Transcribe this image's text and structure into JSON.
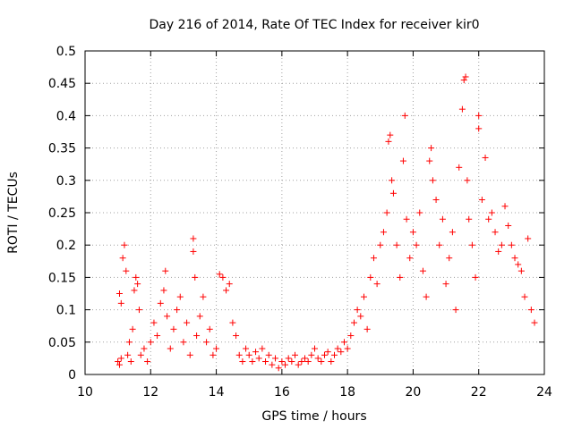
{
  "chart_data": {
    "type": "scatter",
    "title": "Day 216 of 2014, Rate Of TEC Index for receiver kir0",
    "xlabel": "GPS time / hours",
    "ylabel": "ROTI / TECUs",
    "xlim": [
      10,
      24
    ],
    "ylim": [
      0,
      0.5
    ],
    "x_ticks": [
      10,
      12,
      14,
      16,
      18,
      20,
      22,
      24
    ],
    "y_ticks": [
      0,
      0.05,
      0.1,
      0.15,
      0.2,
      0.25,
      0.3,
      0.35,
      0.4,
      0.45,
      0.5
    ],
    "x_tick_labels": [
      "10",
      "12",
      "14",
      "16",
      "18",
      "20",
      "22",
      "24"
    ],
    "y_tick_labels": [
      "0",
      "0.05",
      "0.1",
      "0.15",
      "0.2",
      "0.25",
      "0.3",
      "0.35",
      "0.4",
      "0.45",
      "0.5"
    ],
    "grid": true,
    "marker": "+",
    "marker_color": "#ff0000",
    "series": [
      {
        "name": "kir0 ROTI",
        "points": [
          [
            11.0,
            0.02
          ],
          [
            11.05,
            0.015
          ],
          [
            11.1,
            0.025
          ],
          [
            11.15,
            0.18
          ],
          [
            11.2,
            0.2
          ],
          [
            11.25,
            0.16
          ],
          [
            11.05,
            0.125
          ],
          [
            11.1,
            0.11
          ],
          [
            11.3,
            0.03
          ],
          [
            11.35,
            0.05
          ],
          [
            11.4,
            0.02
          ],
          [
            11.45,
            0.07
          ],
          [
            11.5,
            0.13
          ],
          [
            11.55,
            0.15
          ],
          [
            11.6,
            0.14
          ],
          [
            11.65,
            0.1
          ],
          [
            11.7,
            0.03
          ],
          [
            11.8,
            0.04
          ],
          [
            11.9,
            0.02
          ],
          [
            12.0,
            0.05
          ],
          [
            12.1,
            0.08
          ],
          [
            12.2,
            0.06
          ],
          [
            12.3,
            0.11
          ],
          [
            12.4,
            0.13
          ],
          [
            12.45,
            0.16
          ],
          [
            12.5,
            0.09
          ],
          [
            12.6,
            0.04
          ],
          [
            12.7,
            0.07
          ],
          [
            12.8,
            0.1
          ],
          [
            12.9,
            0.12
          ],
          [
            13.0,
            0.05
          ],
          [
            13.1,
            0.08
          ],
          [
            13.2,
            0.03
          ],
          [
            13.3,
            0.21
          ],
          [
            13.3,
            0.19
          ],
          [
            13.35,
            0.15
          ],
          [
            13.4,
            0.06
          ],
          [
            13.5,
            0.09
          ],
          [
            13.6,
            0.12
          ],
          [
            13.7,
            0.05
          ],
          [
            13.8,
            0.07
          ],
          [
            13.9,
            0.03
          ],
          [
            14.0,
            0.04
          ],
          [
            14.1,
            0.155
          ],
          [
            14.2,
            0.15
          ],
          [
            14.3,
            0.13
          ],
          [
            14.4,
            0.14
          ],
          [
            14.5,
            0.08
          ],
          [
            14.6,
            0.06
          ],
          [
            14.7,
            0.03
          ],
          [
            14.8,
            0.02
          ],
          [
            14.9,
            0.04
          ],
          [
            15.0,
            0.03
          ],
          [
            15.1,
            0.02
          ],
          [
            15.2,
            0.035
          ],
          [
            15.3,
            0.025
          ],
          [
            15.4,
            0.04
          ],
          [
            15.5,
            0.02
          ],
          [
            15.6,
            0.03
          ],
          [
            15.7,
            0.015
          ],
          [
            15.8,
            0.025
          ],
          [
            15.9,
            0.01
          ],
          [
            16.0,
            0.02
          ],
          [
            16.1,
            0.015
          ],
          [
            16.2,
            0.025
          ],
          [
            16.3,
            0.02
          ],
          [
            16.4,
            0.03
          ],
          [
            16.5,
            0.015
          ],
          [
            16.6,
            0.02
          ],
          [
            16.7,
            0.025
          ],
          [
            16.8,
            0.02
          ],
          [
            16.9,
            0.03
          ],
          [
            17.0,
            0.04
          ],
          [
            17.1,
            0.025
          ],
          [
            17.2,
            0.02
          ],
          [
            17.3,
            0.03
          ],
          [
            17.4,
            0.035
          ],
          [
            17.5,
            0.02
          ],
          [
            17.6,
            0.03
          ],
          [
            17.7,
            0.04
          ],
          [
            17.8,
            0.035
          ],
          [
            17.9,
            0.05
          ],
          [
            18.0,
            0.04
          ],
          [
            18.1,
            0.06
          ],
          [
            18.2,
            0.08
          ],
          [
            18.3,
            0.1
          ],
          [
            18.4,
            0.09
          ],
          [
            18.5,
            0.12
          ],
          [
            18.6,
            0.07
          ],
          [
            18.7,
            0.15
          ],
          [
            18.8,
            0.18
          ],
          [
            18.9,
            0.14
          ],
          [
            19.0,
            0.2
          ],
          [
            19.1,
            0.22
          ],
          [
            19.2,
            0.25
          ],
          [
            19.25,
            0.36
          ],
          [
            19.3,
            0.37
          ],
          [
            19.35,
            0.3
          ],
          [
            19.4,
            0.28
          ],
          [
            19.5,
            0.2
          ],
          [
            19.6,
            0.15
          ],
          [
            19.7,
            0.33
          ],
          [
            19.75,
            0.4
          ],
          [
            19.8,
            0.24
          ],
          [
            19.9,
            0.18
          ],
          [
            20.0,
            0.22
          ],
          [
            20.1,
            0.2
          ],
          [
            20.2,
            0.25
          ],
          [
            20.3,
            0.16
          ],
          [
            20.4,
            0.12
          ],
          [
            20.5,
            0.33
          ],
          [
            20.55,
            0.35
          ],
          [
            20.6,
            0.3
          ],
          [
            20.7,
            0.27
          ],
          [
            20.8,
            0.2
          ],
          [
            20.9,
            0.24
          ],
          [
            21.0,
            0.14
          ],
          [
            21.1,
            0.18
          ],
          [
            21.2,
            0.22
          ],
          [
            21.3,
            0.1
          ],
          [
            21.4,
            0.32
          ],
          [
            21.5,
            0.41
          ],
          [
            21.55,
            0.455
          ],
          [
            21.6,
            0.46
          ],
          [
            21.65,
            0.3
          ],
          [
            21.7,
            0.24
          ],
          [
            21.8,
            0.2
          ],
          [
            21.9,
            0.15
          ],
          [
            22.0,
            0.4
          ],
          [
            22.0,
            0.38
          ],
          [
            22.1,
            0.27
          ],
          [
            22.2,
            0.335
          ],
          [
            22.3,
            0.24
          ],
          [
            22.4,
            0.25
          ],
          [
            22.5,
            0.22
          ],
          [
            22.6,
            0.19
          ],
          [
            22.7,
            0.2
          ],
          [
            22.8,
            0.26
          ],
          [
            22.9,
            0.23
          ],
          [
            23.0,
            0.2
          ],
          [
            23.1,
            0.18
          ],
          [
            23.2,
            0.17
          ],
          [
            23.3,
            0.16
          ],
          [
            23.4,
            0.12
          ],
          [
            23.5,
            0.21
          ],
          [
            23.6,
            0.1
          ],
          [
            23.7,
            0.08
          ]
        ]
      }
    ]
  }
}
